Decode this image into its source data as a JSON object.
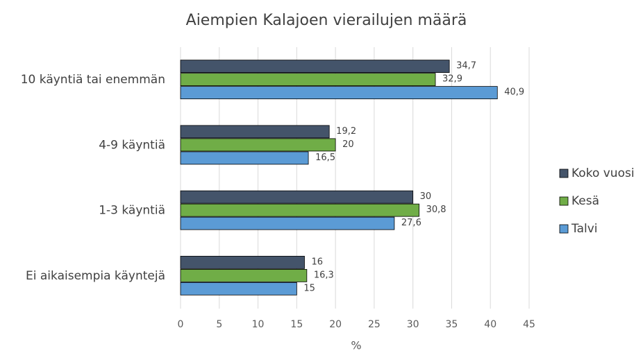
{
  "chart_data": {
    "type": "hbar",
    "title": "Aiempien Kalajoen vierailujen määrä",
    "xlabel": "%",
    "categories": [
      "10 käyntiä tai enemmän",
      "4-9 käyntiä",
      "1-3 käyntiä",
      "Ei aikaisempia käyntejä"
    ],
    "series": [
      {
        "name": "Koko vuosi",
        "color": "#44546a",
        "values": [
          34.7,
          19.2,
          30,
          16
        ],
        "value_labels": [
          "34,7",
          "19,2",
          "30",
          "16"
        ]
      },
      {
        "name": "Kesä",
        "color": "#70ad47",
        "values": [
          32.9,
          20,
          30.8,
          16.3
        ],
        "value_labels": [
          "32,9",
          "20",
          "30,8",
          "16,3"
        ]
      },
      {
        "name": "Talvi",
        "color": "#5b9bd5",
        "values": [
          40.9,
          16.5,
          27.6,
          15
        ],
        "value_labels": [
          "40,9",
          "16,5",
          "27,6",
          "15"
        ]
      }
    ],
    "xlim": [
      0,
      45
    ],
    "xticks": [
      0,
      5,
      10,
      15,
      20,
      25,
      30,
      35,
      40,
      45
    ],
    "grid": true,
    "legend": "right"
  }
}
